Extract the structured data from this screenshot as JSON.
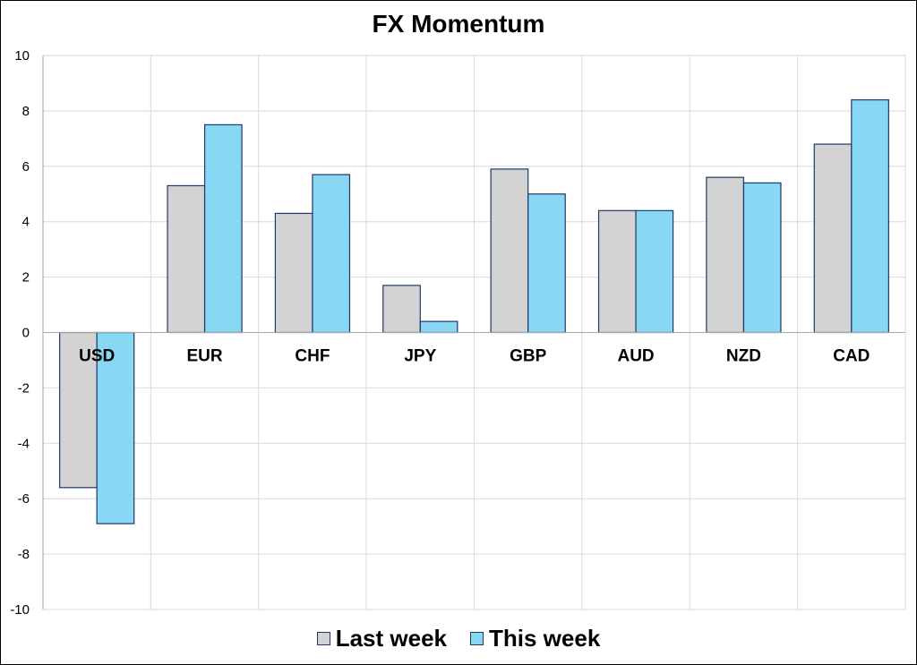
{
  "chart_data": {
    "type": "bar",
    "title": "FX Momentum",
    "xlabel": "",
    "ylabel": "",
    "categories": [
      "USD",
      "EUR",
      "CHF",
      "JPY",
      "GBP",
      "AUD",
      "NZD",
      "CAD"
    ],
    "series": [
      {
        "name": "Last week",
        "values": [
          -5.6,
          5.3,
          4.3,
          1.7,
          5.9,
          4.4,
          5.6,
          6.8
        ],
        "color": "#D3D3D3"
      },
      {
        "name": "This week",
        "values": [
          -6.9,
          7.5,
          5.7,
          0.4,
          5.0,
          4.4,
          5.4,
          8.4
        ],
        "color": "#87D7F5"
      }
    ],
    "ylim": [
      -10,
      10
    ],
    "yticks": [
      10,
      8,
      6,
      4,
      2,
      0,
      -2,
      -4,
      -6,
      -8,
      -10
    ],
    "grid": true,
    "legend_position": "bottom",
    "bar_edge_color": "#1F3864",
    "grid_color": "#D9D9D9"
  }
}
